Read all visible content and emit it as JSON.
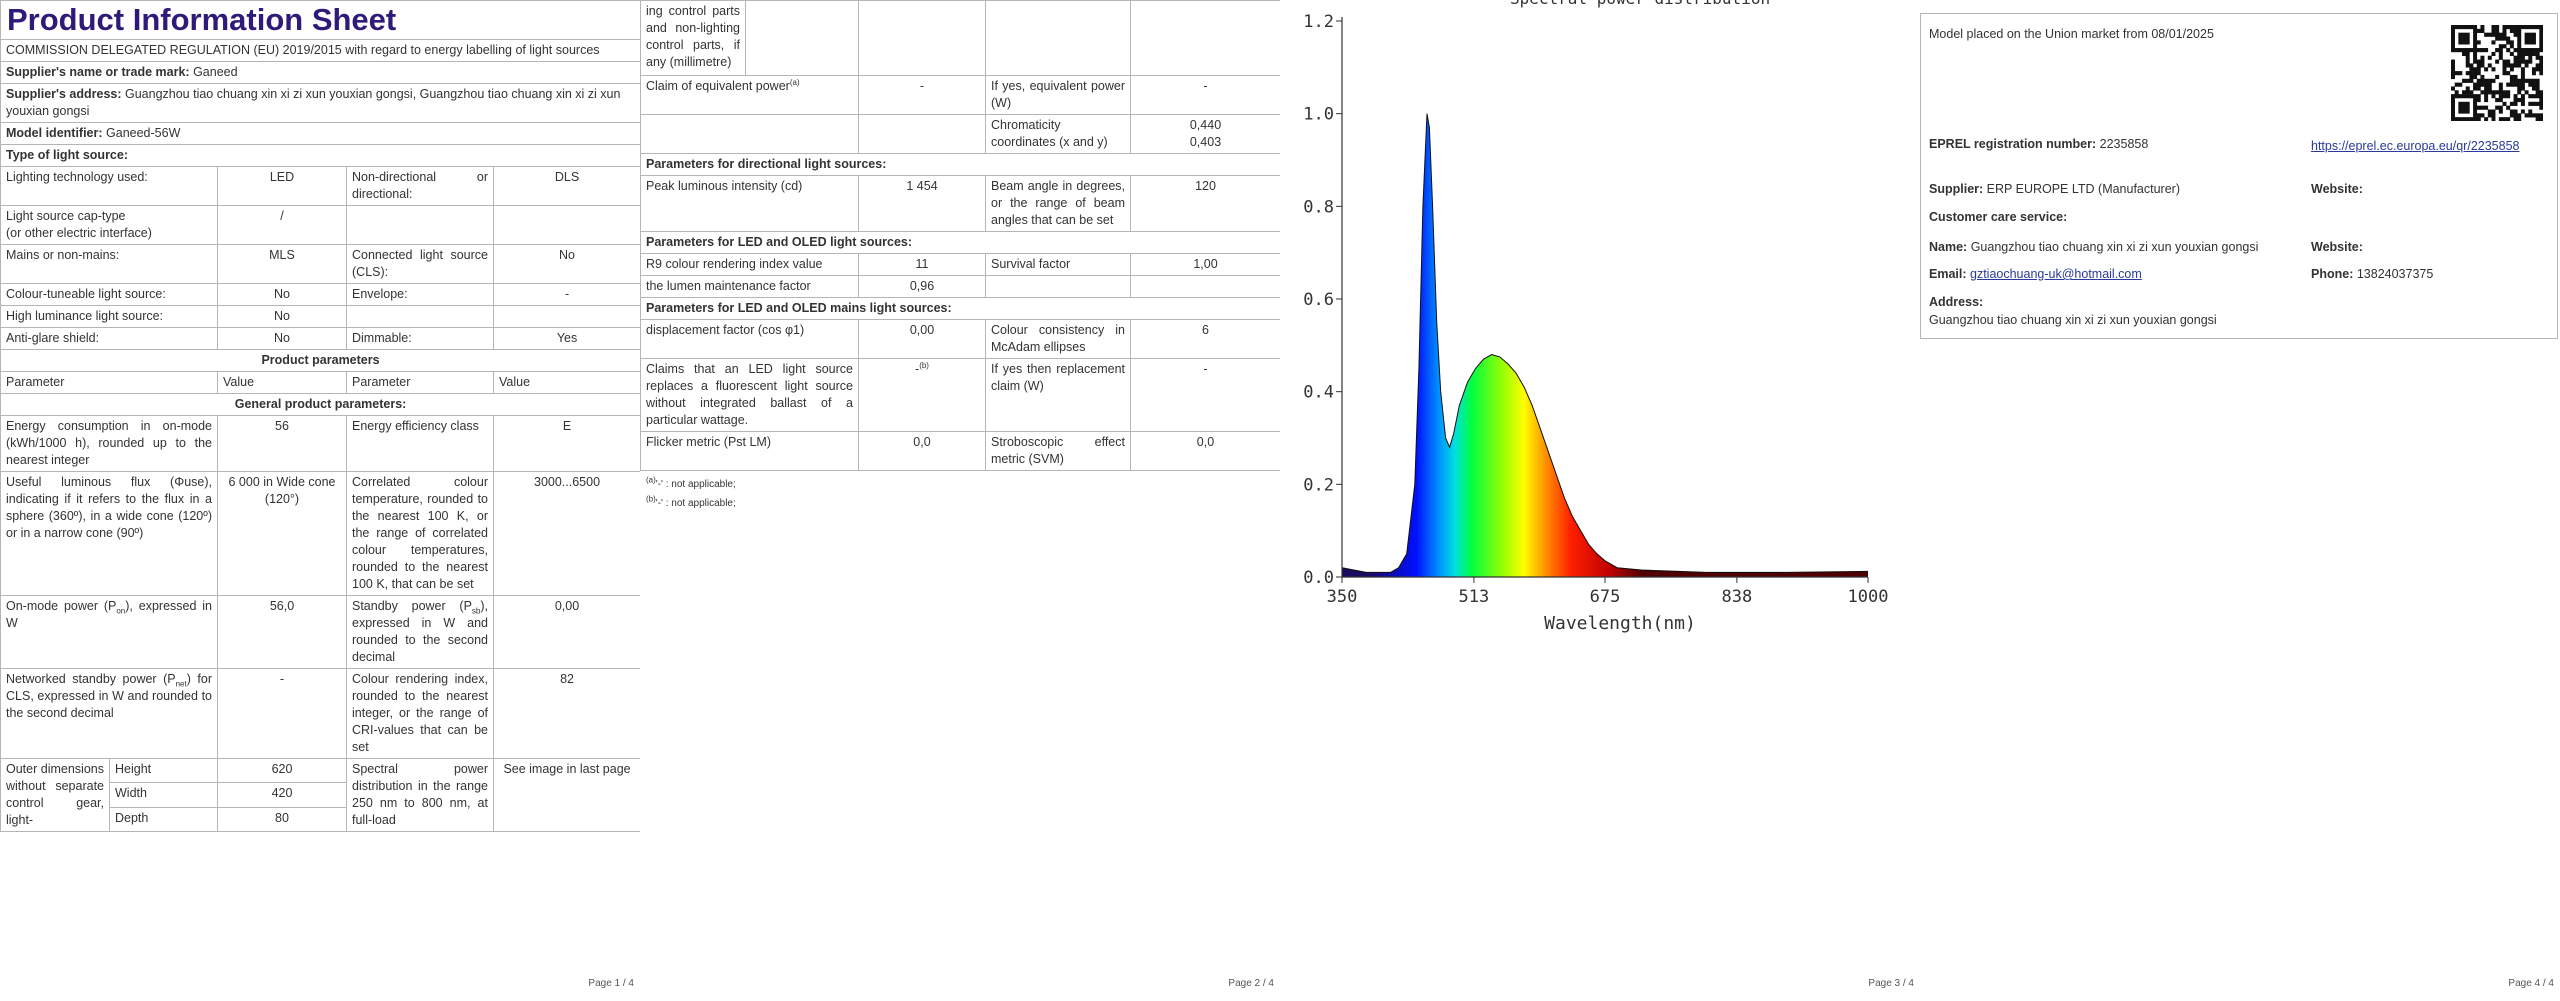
{
  "page1": {
    "title": "Product Information Sheet",
    "regulation": "COMMISSION DELEGATED REGULATION (EU) 2019/2015 with regard to energy labelling of light sources",
    "supplier_name": {
      "label": "Supplier's name or trade mark:",
      "value": "Ganeed"
    },
    "supplier_address": {
      "label": "Supplier's address:",
      "value": "Guangzhou tiao chuang xin xi zi xun youxian gongsi, Guangzhou tiao chuang xin xi zi xun youxian gongsi"
    },
    "model": {
      "label": "Model identifier:",
      "value": "Ganeed-56W"
    },
    "light_source_type": {
      "heading": "Type of light source:",
      "rows": [
        [
          "Lighting technology used:",
          "LED",
          "Non-directional or directional:",
          "DLS"
        ],
        [
          [
            "Light source cap-type",
            "(or other electric interface)"
          ],
          "/"
        ],
        [
          "Mains or non-mains:",
          "MLS",
          "Connected light source (CLS):",
          "No"
        ],
        [
          "Colour-tuneable light source:",
          "No",
          "Envelope:",
          "-"
        ],
        [
          "High luminance light source:",
          "No"
        ],
        [
          "Anti-glare shield:",
          "No",
          "Dimmable:",
          "Yes"
        ]
      ]
    },
    "product_parameters": "Product parameters",
    "header": [
      "Parameter",
      "Value",
      "Parameter",
      "Value"
    ],
    "general_heading": "General product parameters:",
    "general_rows": [
      [
        "Energy consumption in on-mode (kWh/1000 h), rounded up to the nearest integer",
        "56",
        "Energy efficiency class",
        "E"
      ],
      [
        "Useful luminous flux (Φuse), indicating if it refers to the flux in a sphere (360º), in a wide cone (120º) or in a narrow cone (90º)",
        "6 000 in Wide cone (120°)",
        "Correlated colour temperature, rounded to the nearest 100 K, or the range of correlated colour temperatures, rounded to the nearest 100 K, that can be set",
        "3000...6500"
      ],
      [
        {
          "before": "On-mode power (P",
          "sub": "on",
          "after": "), expressed in W"
        },
        "56,0",
        {
          "before": "Standby power (P",
          "sub": "sb",
          "after": "), expressed in W and rounded to the second decimal"
        },
        "0,00"
      ],
      [
        {
          "before": "Networked standby power (P",
          "sub": "net",
          "after": ") for CLS, expressed in W and rounded to the second decimal"
        },
        "-",
        "Colour rendering index, rounded to the nearest integer, or the range of CRI-values that can be set",
        "82"
      ]
    ],
    "outer_dimensions": {
      "label": "Outer dimensions without separate control gear, light-",
      "rows": [
        [
          "Height",
          "620"
        ],
        [
          "Width",
          "420"
        ],
        [
          "Depth",
          "80"
        ]
      ],
      "spd_label": "Spectral power distribution in the range 250 nm to 800 nm, at full-load",
      "spd_value": "See image in last page"
    }
  },
  "page2": {
    "continued": "ing control parts and non-lighting control parts, if any (millimetre)",
    "equivalent": [
      {
        "text": "Claim of equivalent power",
        "note": "(a)"
      },
      "-",
      "If yes, equivalent power (W)",
      "-"
    ],
    "chromaticity": [
      "Chromaticity coordinates (x and y)",
      [
        "0,440",
        "0,403"
      ]
    ],
    "directional_heading": "Parameters for directional light sources:",
    "directional_rows": [
      [
        "Peak luminous intensity (cd)",
        "1 454",
        "Beam angle in degrees, or the range of beam angles that can be set",
        "120"
      ]
    ],
    "led_heading": "Parameters for LED and OLED light sources:",
    "led_rows": [
      [
        "R9 colour rendering index value",
        "11",
        "Survival factor",
        "1,00"
      ],
      [
        "the lumen maintenance factor",
        "0,96"
      ]
    ],
    "mains_heading": "Parameters for LED and OLED mains light sources:",
    "mains_rows": [
      [
        "displacement factor (cos φ1)",
        "0,00",
        "Colour consistency in McAdam ellipses",
        "6"
      ],
      [
        "Claims that an LED light source replaces a fluorescent light source without integrated ballast of a particular wattage.",
        {
          "text": "-",
          "note": "(b)"
        },
        "If yes then replacement claim (W)",
        "-"
      ],
      [
        "Flicker metric (Pst LM)",
        "0,0",
        "Stroboscopic effect metric (SVM)",
        "0,0"
      ]
    ],
    "footnotes": [
      {
        "mark": "(a)",
        "text": "'-' : not applicable;"
      },
      {
        "mark": "(b)",
        "text": "'-' : not applicable;"
      }
    ]
  },
  "chart_data": {
    "type": "line",
    "title": "Spectral power distribution",
    "x_label": "Wavelength(nm)",
    "x": [
      350,
      380,
      410,
      420,
      430,
      440,
      445,
      450,
      455,
      458,
      462,
      467,
      472,
      478,
      483,
      488,
      495,
      505,
      515,
      525,
      535,
      545,
      555,
      565,
      575,
      585,
      595,
      605,
      615,
      625,
      635,
      645,
      655,
      665,
      675,
      690,
      720,
      800,
      900,
      1000
    ],
    "values": [
      0.02,
      0.01,
      0.01,
      0.02,
      0.05,
      0.2,
      0.45,
      0.8,
      1.0,
      0.97,
      0.8,
      0.55,
      0.4,
      0.3,
      0.28,
      0.31,
      0.37,
      0.42,
      0.45,
      0.47,
      0.48,
      0.475,
      0.46,
      0.44,
      0.41,
      0.37,
      0.32,
      0.27,
      0.22,
      0.17,
      0.13,
      0.1,
      0.07,
      0.05,
      0.035,
      0.02,
      0.015,
      0.01,
      0.01,
      0.012
    ],
    "xlim": [
      350,
      1000
    ],
    "ylim": [
      0,
      1.2
    ],
    "xticks": [
      350,
      513,
      675,
      838,
      1000
    ],
    "yticks": [
      {
        "value": 0,
        "label": "0.0"
      },
      0.2,
      0.4,
      0.6,
      0.8,
      {
        "value": 1,
        "label": "1.0"
      },
      1.2
    ]
  },
  "page4": {
    "placed": "Model placed on the Union market from 08/01/2025",
    "eprel": {
      "label": "EPREL registration number:",
      "value": "2235858",
      "link": "https://eprel.ec.europa.eu/qr/2235858"
    },
    "supplier": {
      "label": "Supplier:",
      "value": "ERP EUROPE LTD (Manufacturer)",
      "website": "Website:"
    },
    "customer_care": "Customer care service:",
    "name": {
      "label": "Name:",
      "value": "Guangzhou tiao chuang xin xi zi xun youxian gongsi",
      "website": "Website:"
    },
    "email": {
      "label": "Email:",
      "value": "gztiaochuang-uk@hotmail.com",
      "phone_label": "Phone:",
      "phone": "13824037375"
    },
    "address": {
      "label": "Address:",
      "value": "Guangzhou tiao chuang xin xi zi xun youxian gongsi"
    }
  },
  "page_labels": [
    "Page 1 / 4",
    "Page 2 / 4",
    "Page 3 / 4",
    "Page 4 / 4"
  ]
}
